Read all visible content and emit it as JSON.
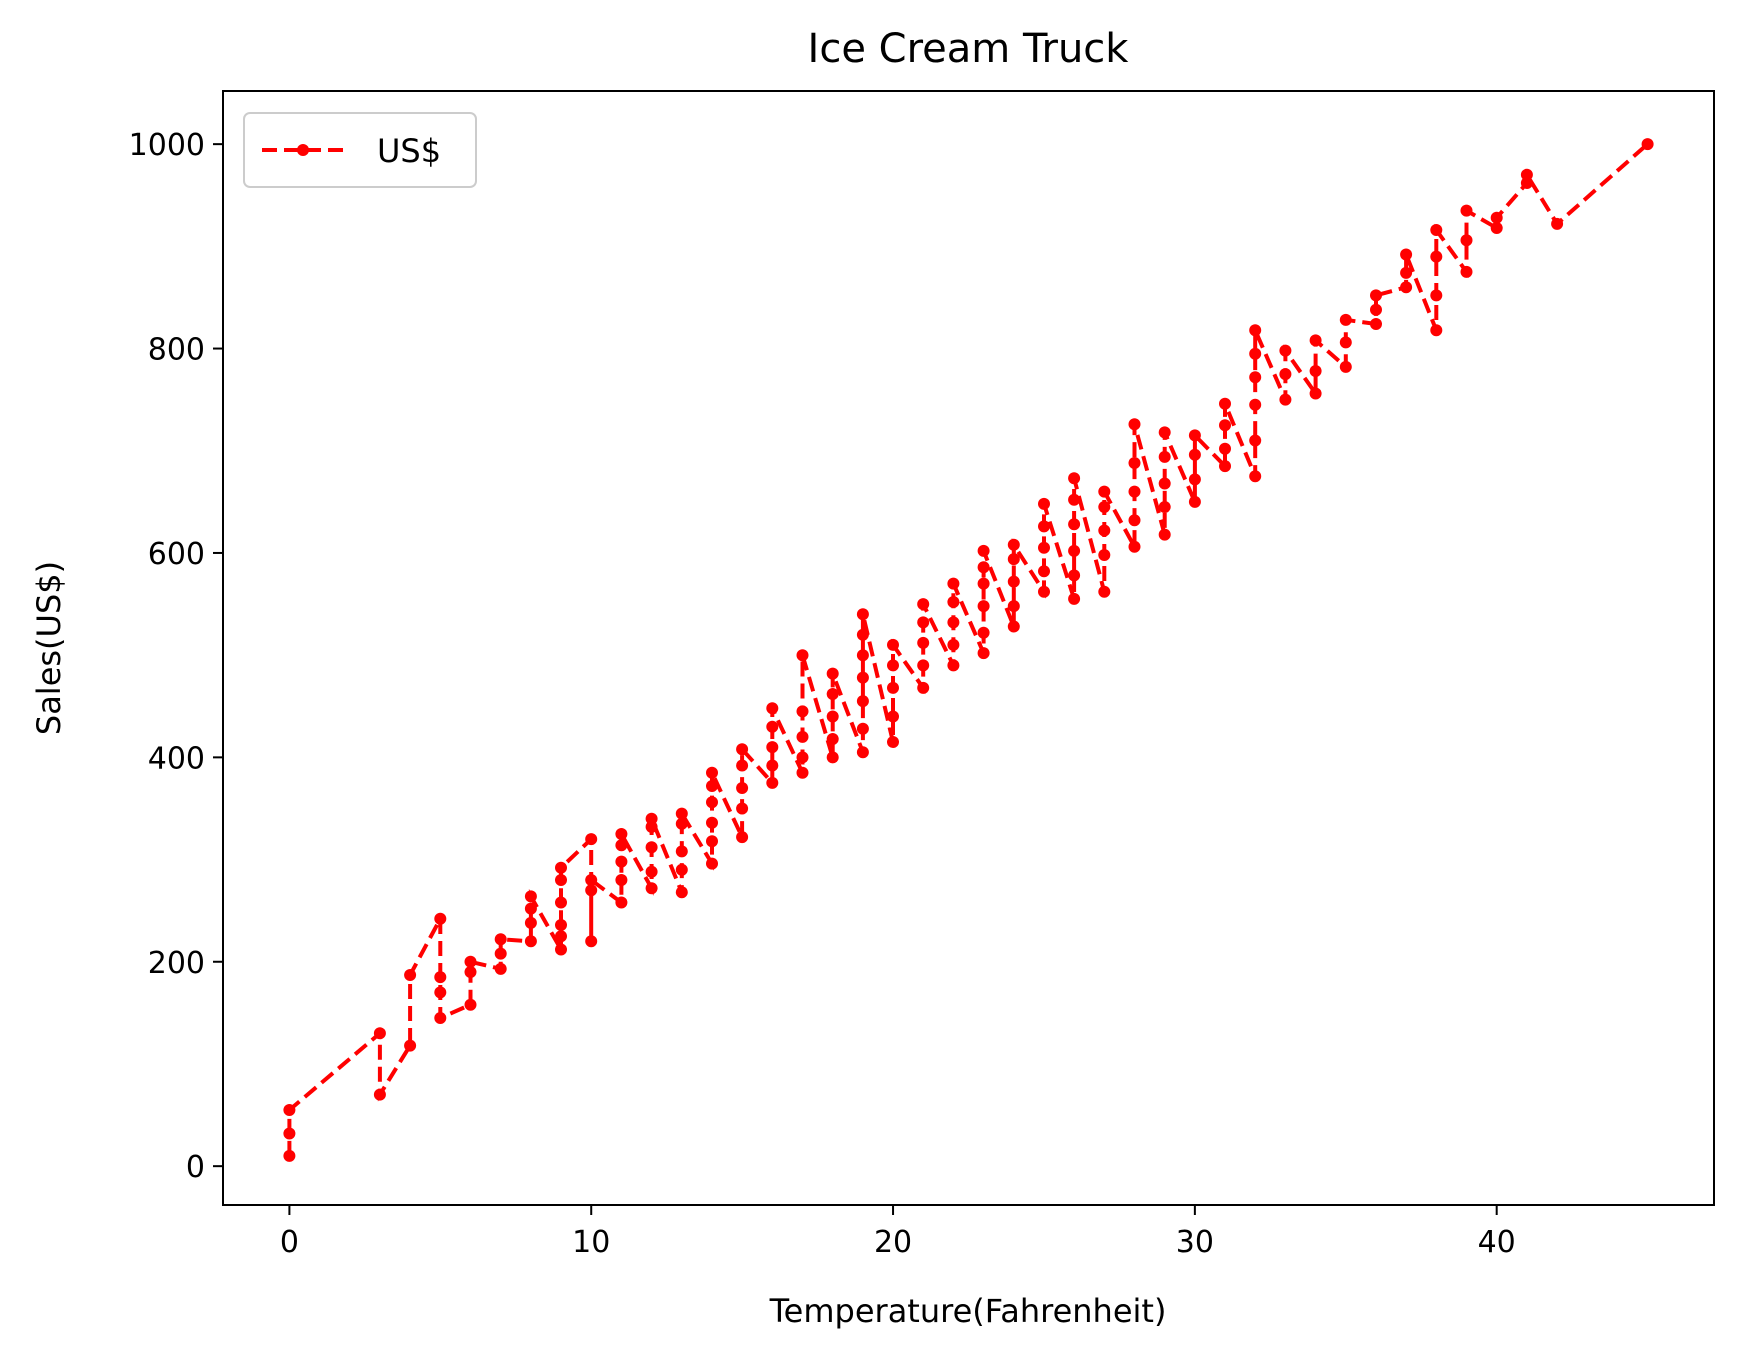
{
  "chart_data": {
    "type": "line",
    "title": "Ice Cream Truck",
    "xlabel": "Temperature(Fahrenheit)",
    "ylabel": "Sales(US$)",
    "xlim": [
      -2.2,
      47.2
    ],
    "ylim": [
      -38,
      1052
    ],
    "xticks": [
      0,
      10,
      20,
      30,
      40
    ],
    "yticks": [
      0,
      200,
      400,
      600,
      800,
      1000
    ],
    "grid": false,
    "legend_position": "upper left",
    "series": [
      {
        "name": "US$",
        "color": "#ff0000",
        "linestyle": "dashed",
        "marker": "circle",
        "points": [
          [
            0,
            10
          ],
          [
            0,
            32
          ],
          [
            0,
            55
          ],
          [
            3,
            130
          ],
          [
            3,
            70
          ],
          [
            4,
            118
          ],
          [
            4,
            187
          ],
          [
            5,
            242
          ],
          [
            5,
            185
          ],
          [
            5,
            170
          ],
          [
            5,
            145
          ],
          [
            6,
            158
          ],
          [
            6,
            190
          ],
          [
            6,
            200
          ],
          [
            7,
            193
          ],
          [
            7,
            208
          ],
          [
            7,
            222
          ],
          [
            8,
            220
          ],
          [
            8,
            238
          ],
          [
            8,
            252
          ],
          [
            8,
            264
          ],
          [
            9,
            212
          ],
          [
            9,
            225
          ],
          [
            9,
            236
          ],
          [
            9,
            258
          ],
          [
            9,
            280
          ],
          [
            9,
            292
          ],
          [
            10,
            320
          ],
          [
            10,
            220
          ],
          [
            10,
            270
          ],
          [
            10,
            280
          ],
          [
            11,
            258
          ],
          [
            11,
            280
          ],
          [
            11,
            298
          ],
          [
            11,
            314
          ],
          [
            11,
            325
          ],
          [
            12,
            272
          ],
          [
            12,
            288
          ],
          [
            12,
            312
          ],
          [
            12,
            332
          ],
          [
            12,
            340
          ],
          [
            13,
            268
          ],
          [
            13,
            290
          ],
          [
            13,
            308
          ],
          [
            13,
            335
          ],
          [
            13,
            345
          ],
          [
            14,
            296
          ],
          [
            14,
            318
          ],
          [
            14,
            336
          ],
          [
            14,
            356
          ],
          [
            14,
            372
          ],
          [
            14,
            385
          ],
          [
            15,
            322
          ],
          [
            15,
            350
          ],
          [
            15,
            370
          ],
          [
            15,
            392
          ],
          [
            15,
            408
          ],
          [
            16,
            375
          ],
          [
            16,
            392
          ],
          [
            16,
            410
          ],
          [
            16,
            430
          ],
          [
            16,
            448
          ],
          [
            17,
            385
          ],
          [
            17,
            400
          ],
          [
            17,
            420
          ],
          [
            17,
            445
          ],
          [
            17,
            500
          ],
          [
            18,
            400
          ],
          [
            18,
            418
          ],
          [
            18,
            440
          ],
          [
            18,
            462
          ],
          [
            18,
            482
          ],
          [
            19,
            405
          ],
          [
            19,
            428
          ],
          [
            19,
            455
          ],
          [
            19,
            478
          ],
          [
            19,
            500
          ],
          [
            19,
            520
          ],
          [
            19,
            540
          ],
          [
            20,
            415
          ],
          [
            20,
            440
          ],
          [
            20,
            468
          ],
          [
            20,
            490
          ],
          [
            20,
            510
          ],
          [
            21,
            468
          ],
          [
            21,
            490
          ],
          [
            21,
            512
          ],
          [
            21,
            532
          ],
          [
            21,
            550
          ],
          [
            22,
            490
          ],
          [
            22,
            510
          ],
          [
            22,
            532
          ],
          [
            22,
            552
          ],
          [
            22,
            570
          ],
          [
            23,
            502
          ],
          [
            23,
            522
          ],
          [
            23,
            548
          ],
          [
            23,
            570
          ],
          [
            23,
            586
          ],
          [
            23,
            602
          ],
          [
            24,
            528
          ],
          [
            24,
            548
          ],
          [
            24,
            572
          ],
          [
            24,
            594
          ],
          [
            24,
            608
          ],
          [
            25,
            562
          ],
          [
            25,
            582
          ],
          [
            25,
            605
          ],
          [
            25,
            626
          ],
          [
            25,
            648
          ],
          [
            26,
            555
          ],
          [
            26,
            578
          ],
          [
            26,
            602
          ],
          [
            26,
            628
          ],
          [
            26,
            652
          ],
          [
            26,
            673
          ],
          [
            27,
            562
          ],
          [
            27,
            598
          ],
          [
            27,
            622
          ],
          [
            27,
            645
          ],
          [
            27,
            660
          ],
          [
            28,
            606
          ],
          [
            28,
            632
          ],
          [
            28,
            660
          ],
          [
            28,
            688
          ],
          [
            28,
            726
          ],
          [
            29,
            618
          ],
          [
            29,
            645
          ],
          [
            29,
            668
          ],
          [
            29,
            694
          ],
          [
            29,
            718
          ],
          [
            30,
            650
          ],
          [
            30,
            672
          ],
          [
            30,
            696
          ],
          [
            30,
            715
          ],
          [
            31,
            685
          ],
          [
            31,
            702
          ],
          [
            31,
            725
          ],
          [
            31,
            746
          ],
          [
            32,
            675
          ],
          [
            32,
            710
          ],
          [
            32,
            745
          ],
          [
            32,
            772
          ],
          [
            32,
            795
          ],
          [
            32,
            818
          ],
          [
            33,
            750
          ],
          [
            33,
            775
          ],
          [
            33,
            798
          ],
          [
            34,
            756
          ],
          [
            34,
            778
          ],
          [
            34,
            808
          ],
          [
            35,
            782
          ],
          [
            35,
            806
          ],
          [
            35,
            828
          ],
          [
            36,
            824
          ],
          [
            36,
            838
          ],
          [
            36,
            852
          ],
          [
            37,
            860
          ],
          [
            37,
            874
          ],
          [
            37,
            892
          ],
          [
            38,
            818
          ],
          [
            38,
            852
          ],
          [
            38,
            890
          ],
          [
            38,
            916
          ],
          [
            39,
            875
          ],
          [
            39,
            906
          ],
          [
            39,
            935
          ],
          [
            40,
            918
          ],
          [
            40,
            928
          ],
          [
            41,
            962
          ],
          [
            41,
            970
          ],
          [
            42,
            922
          ],
          [
            45,
            1000
          ]
        ]
      }
    ]
  }
}
